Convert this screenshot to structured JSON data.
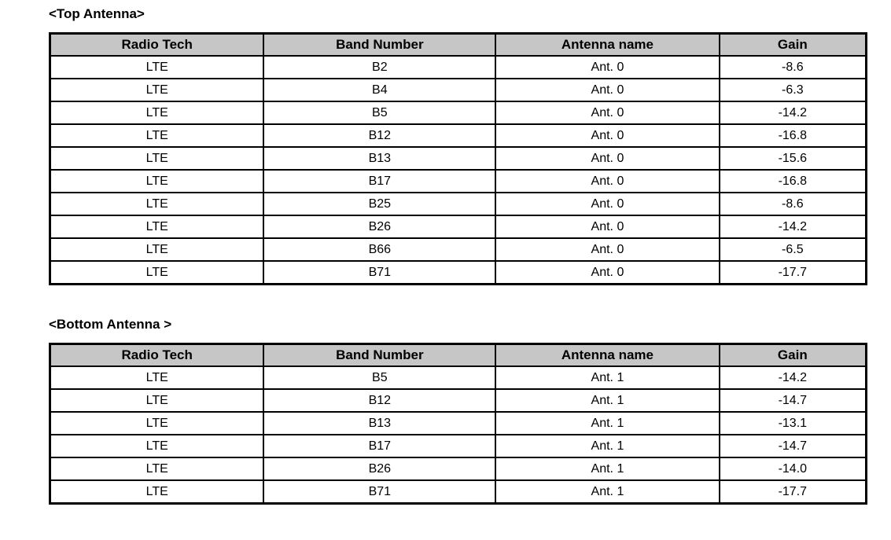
{
  "page": {
    "background_color": "#ffffff",
    "text_color": "#000000",
    "table_header_bg": "#c6c6c6",
    "table_border_color": "#000000"
  },
  "tables": [
    {
      "title": "<Top Antenna>",
      "columns": [
        "Radio Tech",
        "Band Number",
        "Antenna name",
        "Gain"
      ],
      "rows": [
        [
          "LTE",
          "B2",
          "Ant. 0",
          "-8.6"
        ],
        [
          "LTE",
          "B4",
          "Ant. 0",
          "-6.3"
        ],
        [
          "LTE",
          "B5",
          "Ant. 0",
          "-14.2"
        ],
        [
          "LTE",
          "B12",
          "Ant. 0",
          "-16.8"
        ],
        [
          "LTE",
          "B13",
          "Ant. 0",
          "-15.6"
        ],
        [
          "LTE",
          "B17",
          "Ant. 0",
          "-16.8"
        ],
        [
          "LTE",
          "B25",
          "Ant. 0",
          "-8.6"
        ],
        [
          "LTE",
          "B26",
          "Ant. 0",
          "-14.2"
        ],
        [
          "LTE",
          "B66",
          "Ant. 0",
          "-6.5"
        ],
        [
          "LTE",
          "B71",
          "Ant. 0",
          "-17.7"
        ]
      ]
    },
    {
      "title": "<Bottom Antenna >",
      "columns": [
        "Radio Tech",
        "Band Number",
        "Antenna name",
        "Gain"
      ],
      "rows": [
        [
          "LTE",
          "B5",
          "Ant. 1",
          "-14.2"
        ],
        [
          "LTE",
          "B12",
          "Ant. 1",
          "-14.7"
        ],
        [
          "LTE",
          "B13",
          "Ant. 1",
          "-13.1"
        ],
        [
          "LTE",
          "B17",
          "Ant. 1",
          "-14.7"
        ],
        [
          "LTE",
          "B26",
          "Ant. 1",
          "-14.0"
        ],
        [
          "LTE",
          "B71",
          "Ant. 1",
          "-17.7"
        ]
      ]
    }
  ]
}
